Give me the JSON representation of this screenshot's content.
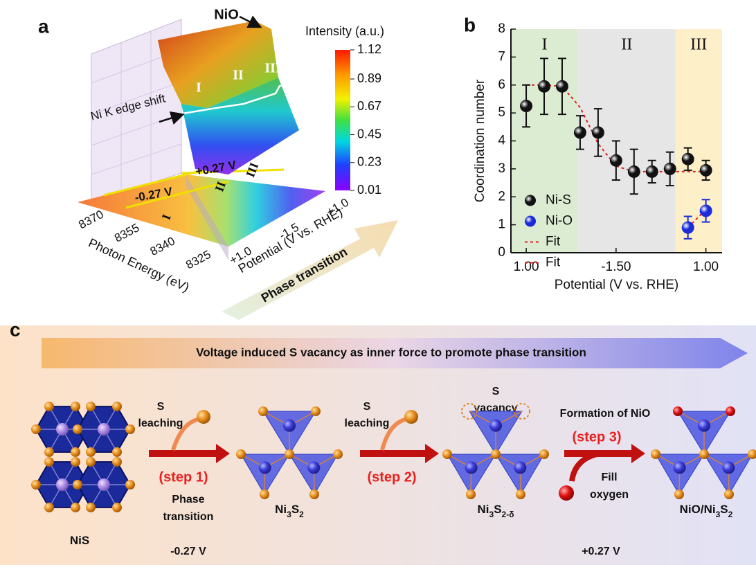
{
  "panel_a": {
    "label": "a",
    "top_label": "NiO",
    "colorbar": {
      "title": "Intensity (a.u.)",
      "lim": [
        0.01,
        1.12
      ],
      "ticks": [
        0.01,
        0.23,
        0.45,
        0.67,
        0.89,
        1.12
      ]
    },
    "region_labels": [
      "I",
      "II",
      "III"
    ],
    "edge_label": "Ni K edge shift",
    "floor_labels": {
      "high": "+0.27 V",
      "low": "-0.27 V",
      "regions": [
        "I",
        "II",
        "III"
      ]
    },
    "energy_axis": {
      "title": "Photon Energy (eV)",
      "ticks": [
        8370,
        8355,
        8340,
        8325
      ]
    },
    "potential_axis": {
      "title": "Potential (V vs. RHE)",
      "ticks": [
        "+1.0",
        "-1.5",
        "+1.0"
      ]
    },
    "arrow_label": "Phase transition"
  },
  "chart_data": {
    "type": "scatter",
    "label": "b",
    "x_label": "Potential (V vs. RHE)",
    "y_label": "Coordination number",
    "categories": [
      "1.00",
      null,
      null,
      null,
      null,
      "-1.50",
      null,
      null,
      null,
      null,
      "1.00"
    ],
    "xlim": [
      -0.85,
      10.9
    ],
    "ylim": [
      0,
      8
    ],
    "yticks": [
      0,
      1,
      2,
      3,
      4,
      5,
      6,
      7,
      8
    ],
    "regions": [
      {
        "label": "I",
        "color": "#dcecd2",
        "range": [
          -0.85,
          2.9
        ]
      },
      {
        "label": "II",
        "color": "#e6e6e6",
        "range": [
          2.9,
          8.3
        ]
      },
      {
        "label": "III",
        "color": "#fdefc8",
        "range": [
          8.3,
          10.9
        ]
      }
    ],
    "legend": "center left",
    "series": [
      {
        "name": "Ni-S",
        "color": "#111111",
        "style": "sphere",
        "values": [
          5.25,
          5.95,
          5.95,
          4.3,
          4.3,
          3.3,
          2.9,
          2.9,
          3.0,
          3.35,
          2.95
        ],
        "errors": [
          0.75,
          1.0,
          1.0,
          0.6,
          0.85,
          0.7,
          0.8,
          0.4,
          0.6,
          0.4,
          0.35
        ]
      },
      {
        "name": "Ni-O",
        "color": "#1a2bd8",
        "style": "sphere",
        "values": [
          null,
          null,
          null,
          null,
          null,
          null,
          null,
          null,
          null,
          0.9,
          1.5
        ],
        "errors": [
          null,
          null,
          null,
          null,
          null,
          null,
          null,
          null,
          null,
          0.4,
          0.4
        ]
      },
      {
        "name": "Fit",
        "color": "#e02020",
        "style": "dashed",
        "values": [
          6.0,
          6.0,
          5.95,
          5.2,
          3.9,
          3.1,
          2.9,
          2.9,
          2.9,
          2.9,
          2.9
        ]
      },
      {
        "name": "Fit",
        "color": "#e02020",
        "style": "dashed",
        "values": [
          null,
          null,
          null,
          null,
          null,
          null,
          null,
          null,
          null,
          0.9,
          1.55
        ]
      }
    ]
  },
  "panel_c": {
    "label": "c",
    "banner": "Voltage induced S vacancy as inner force to promote phase transition",
    "structures": [
      {
        "formula": [
          {
            "text": "NiS"
          }
        ]
      },
      {
        "formula": [
          {
            "text": "Ni"
          },
          {
            "text": "3",
            "sub": true
          },
          {
            "text": "S"
          },
          {
            "text": "2",
            "sub": true
          }
        ]
      },
      {
        "formula": [
          {
            "text": "Ni"
          },
          {
            "text": "3",
            "sub": true
          },
          {
            "text": "S"
          },
          {
            "text": "2-δ",
            "sub": true
          }
        ]
      },
      {
        "formula": [
          {
            "text": "NiO/Ni"
          },
          {
            "text": "3",
            "sub": true
          },
          {
            "text": "S"
          },
          {
            "text": "2",
            "sub": true
          }
        ]
      }
    ],
    "steps": [
      {
        "step": "(step 1)",
        "above": [
          "S",
          "leaching"
        ],
        "below": [
          "Phase",
          "transition"
        ]
      },
      {
        "step": "(step 2)",
        "above": [
          "S",
          "leaching"
        ]
      },
      {
        "step": "(step 3)",
        "above": [
          "Formation of NiO"
        ],
        "below": [
          "Fill",
          "oxygen"
        ]
      }
    ],
    "vacancy_label": [
      "S",
      "vacancy"
    ],
    "potentials": [
      "-0.27 V",
      "+0.27 V"
    ]
  }
}
